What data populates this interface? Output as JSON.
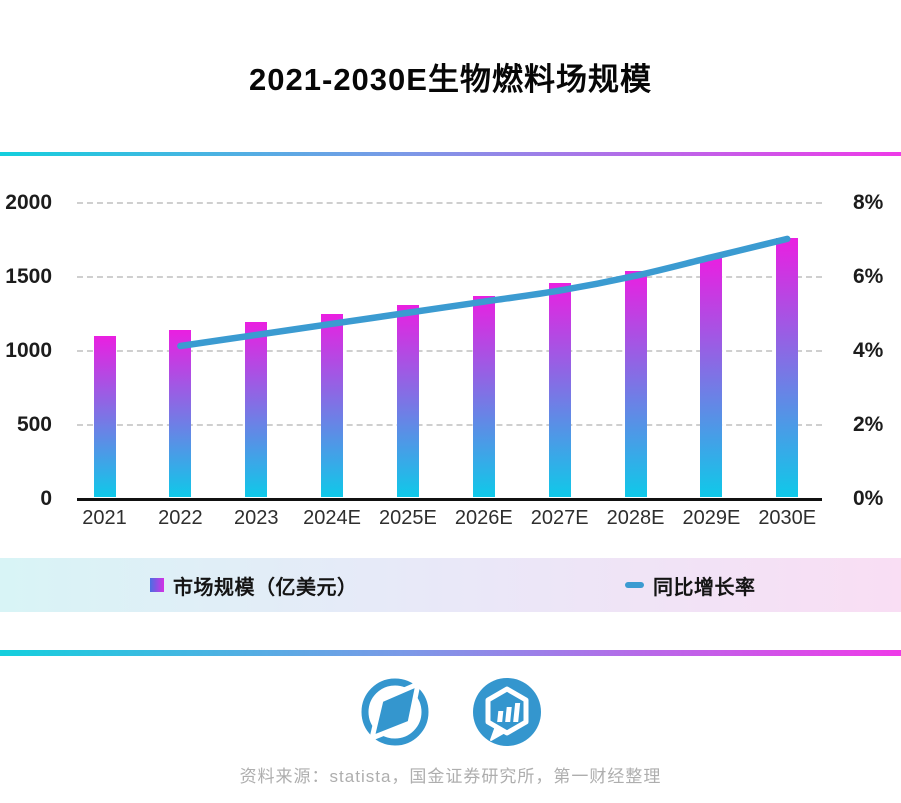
{
  "title": "2021-2030E生物燃料场规模",
  "chart_data": {
    "type": "bar",
    "title": "2021-2030E生物燃料场规模",
    "categories": [
      "2021",
      "2022",
      "2023",
      "2024E",
      "2025E",
      "2026E",
      "2027E",
      "2028E",
      "2029E",
      "2030E"
    ],
    "series": [
      {
        "name": "市场规模（亿美元）",
        "type": "bar",
        "values": [
          1090,
          1130,
          1185,
          1240,
          1300,
          1365,
          1450,
          1535,
          1630,
          1755
        ]
      },
      {
        "name": "同比增长率",
        "type": "line",
        "axis": "right",
        "values": [
          null,
          4.1,
          4.4,
          4.7,
          5.0,
          5.3,
          5.6,
          6.0,
          6.5,
          7.0
        ]
      }
    ],
    "left_axis": {
      "ticks": [
        0,
        500,
        1000,
        1500,
        2000
      ],
      "max": 2000,
      "label": ""
    },
    "right_axis": {
      "ticks": [
        "0%",
        "2%",
        "4%",
        "6%",
        "8%"
      ],
      "tick_values": [
        0,
        2,
        4,
        6,
        8
      ],
      "max": 8,
      "label": ""
    },
    "grid": "dashed horizontal",
    "legend_position": "bottom strip"
  },
  "legend": {
    "market_label": "市场规模（亿美元）",
    "growth_label": "同比增长率"
  },
  "footer": {
    "source": "资料来源：statista，国金证券研究所，第一财经整理"
  },
  "icons": {
    "logo1": "compass-banner-logo-icon",
    "logo2": "hexagon-bar-chart-logo-icon"
  },
  "colors": {
    "bar_top": "#ea1fe1",
    "bar_bottom": "#0fc9e9",
    "line": "#3b9bd1",
    "divider_left": "#14cfdd",
    "divider_mid": "#7b99e7",
    "divider_right": "#ee3ae8",
    "legend_bg_left": "#d8f4f6",
    "legend_bg_mid": "#e9e8f8",
    "legend_bg_right": "#f9def4",
    "swatch_left": "#4a6fe2",
    "swatch_right": "#d431e5",
    "logo_blue": "#3496ce",
    "axis_text": "#1c1c1c",
    "source_text": "#aeaeae",
    "gridline": "#cfcfcf"
  }
}
